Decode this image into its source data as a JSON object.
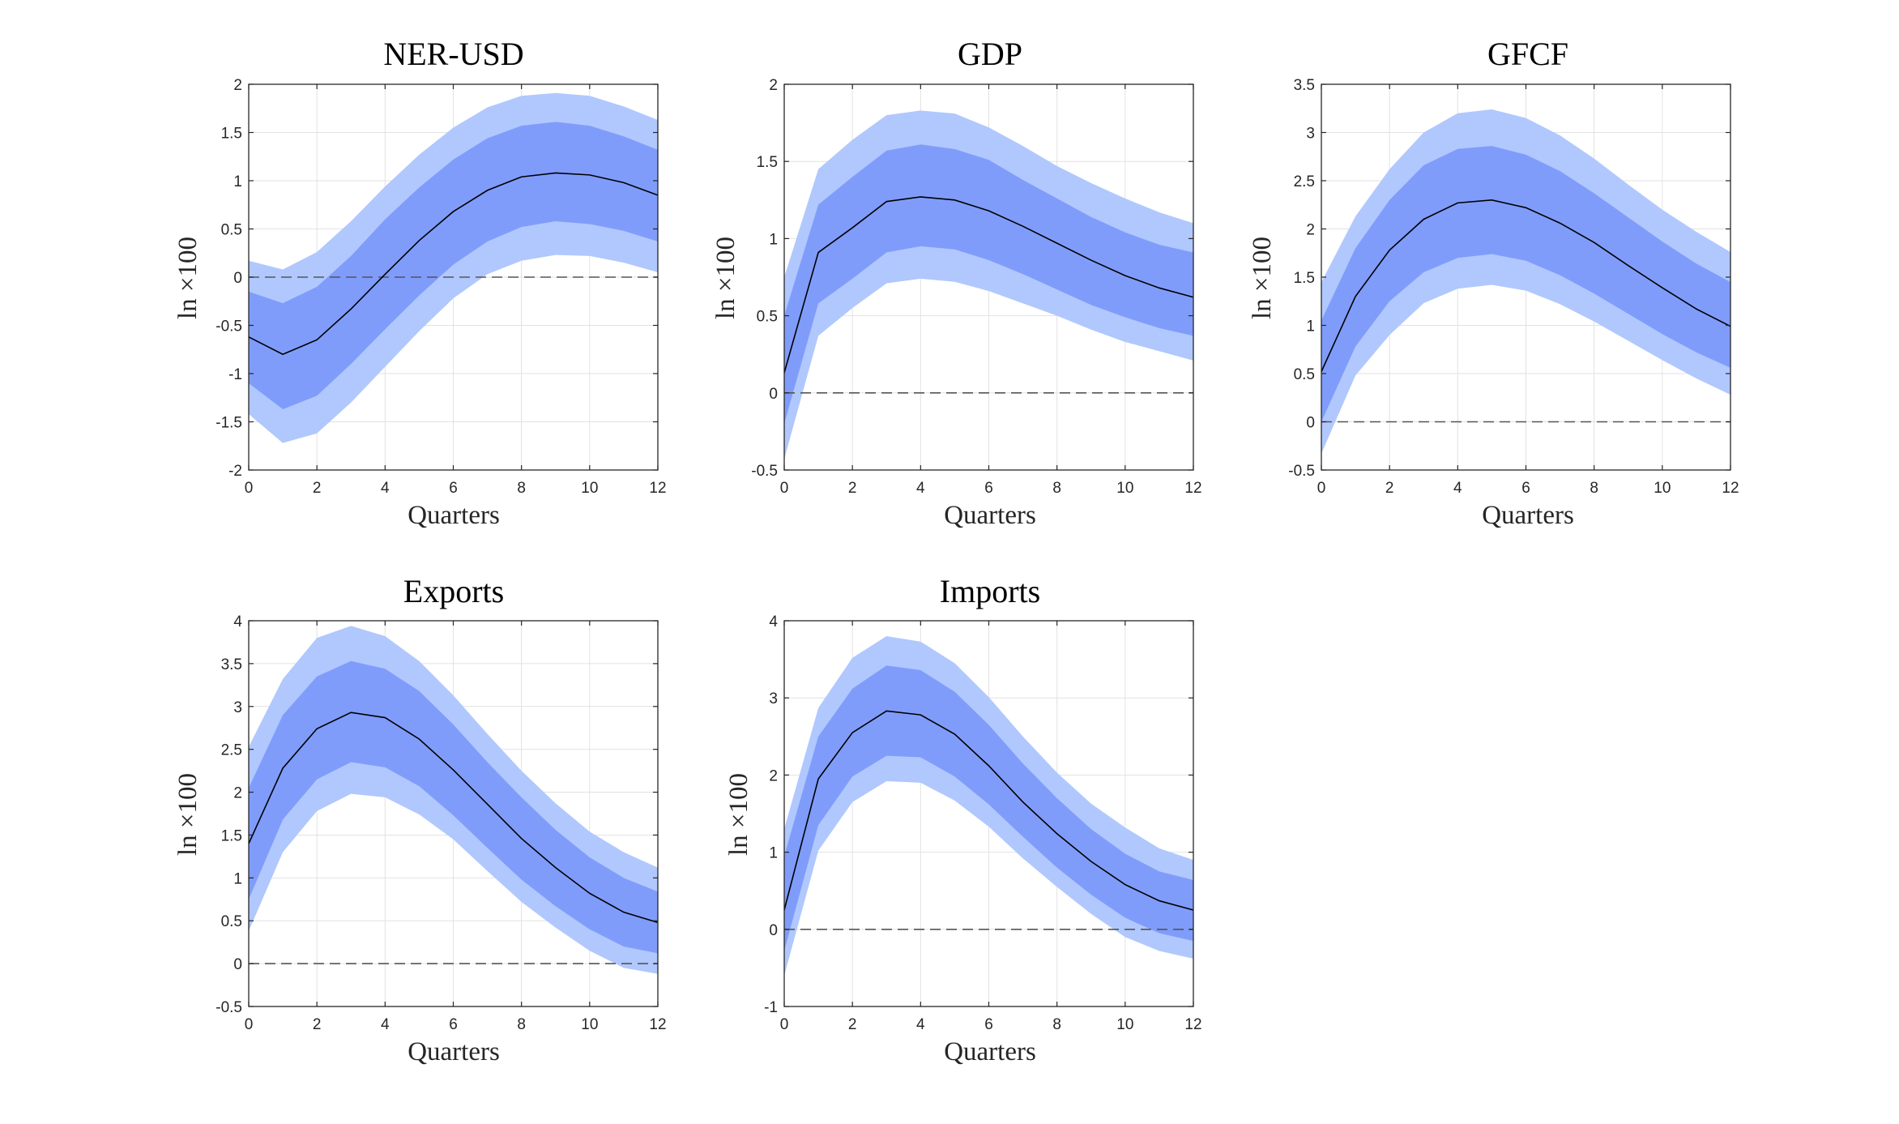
{
  "colors": {
    "outer_band": "#b0c8fd",
    "inner_band": "#809cfb",
    "median_line": "#000000",
    "zero_line": "#555555",
    "grid": "#e2e2e2",
    "axes": "#262626"
  },
  "chart_data": [
    {
      "type": "area",
      "title": "NER-USD",
      "xlabel": "Quarters",
      "ylabel": "ln ×100",
      "xlim": [
        0,
        12
      ],
      "ylim": [
        -2,
        2
      ],
      "xticks": [
        0,
        2,
        4,
        6,
        8,
        10,
        12
      ],
      "yticks": [
        -2,
        -1.5,
        -1,
        -0.5,
        0,
        0.5,
        1,
        1.5,
        2
      ],
      "grid": true,
      "x": [
        0,
        1,
        2,
        3,
        4,
        5,
        6,
        7,
        8,
        9,
        10,
        11,
        12
      ],
      "series": [
        {
          "name": "outer_upper",
          "values": [
            0.17,
            0.08,
            0.26,
            0.58,
            0.94,
            1.27,
            1.55,
            1.76,
            1.88,
            1.91,
            1.88,
            1.77,
            1.63
          ]
        },
        {
          "name": "inner_upper",
          "values": [
            -0.15,
            -0.27,
            -0.1,
            0.22,
            0.6,
            0.93,
            1.22,
            1.44,
            1.57,
            1.61,
            1.57,
            1.46,
            1.32
          ]
        },
        {
          "name": "median",
          "values": [
            -0.62,
            -0.8,
            -0.65,
            -0.33,
            0.03,
            0.38,
            0.68,
            0.9,
            1.04,
            1.08,
            1.06,
            0.98,
            0.85
          ]
        },
        {
          "name": "inner_lower",
          "values": [
            -1.1,
            -1.37,
            -1.23,
            -0.9,
            -0.54,
            -0.19,
            0.13,
            0.37,
            0.52,
            0.58,
            0.55,
            0.48,
            0.37
          ]
        },
        {
          "name": "outer_lower",
          "values": [
            -1.42,
            -1.72,
            -1.62,
            -1.3,
            -0.93,
            -0.56,
            -0.22,
            0.03,
            0.17,
            0.23,
            0.22,
            0.15,
            0.05
          ]
        }
      ]
    },
    {
      "type": "area",
      "title": "GDP",
      "xlabel": "Quarters",
      "ylabel": "ln ×100",
      "xlim": [
        0,
        12
      ],
      "ylim": [
        -0.5,
        2
      ],
      "xticks": [
        0,
        2,
        4,
        6,
        8,
        10,
        12
      ],
      "yticks": [
        -0.5,
        0,
        0.5,
        1,
        1.5,
        2
      ],
      "grid": true,
      "x": [
        0,
        1,
        2,
        3,
        4,
        5,
        6,
        7,
        8,
        9,
        10,
        11,
        12
      ],
      "series": [
        {
          "name": "outer_upper",
          "values": [
            0.75,
            1.45,
            1.64,
            1.8,
            1.83,
            1.81,
            1.72,
            1.6,
            1.47,
            1.36,
            1.26,
            1.17,
            1.1
          ]
        },
        {
          "name": "inner_upper",
          "values": [
            0.5,
            1.22,
            1.4,
            1.57,
            1.61,
            1.58,
            1.51,
            1.38,
            1.26,
            1.14,
            1.04,
            0.96,
            0.91
          ]
        },
        {
          "name": "median",
          "values": [
            0.13,
            0.91,
            1.07,
            1.24,
            1.27,
            1.25,
            1.18,
            1.08,
            0.97,
            0.86,
            0.76,
            0.68,
            0.62
          ]
        },
        {
          "name": "inner_lower",
          "values": [
            -0.2,
            0.58,
            0.74,
            0.91,
            0.95,
            0.93,
            0.86,
            0.77,
            0.67,
            0.57,
            0.49,
            0.42,
            0.37
          ]
        },
        {
          "name": "outer_lower",
          "values": [
            -0.43,
            0.37,
            0.55,
            0.71,
            0.74,
            0.72,
            0.66,
            0.58,
            0.5,
            0.41,
            0.33,
            0.27,
            0.21
          ]
        }
      ]
    },
    {
      "type": "area",
      "title": "GFCF",
      "xlabel": "Quarters",
      "ylabel": "ln ×100",
      "xlim": [
        0,
        12
      ],
      "ylim": [
        -0.5,
        3.5
      ],
      "xticks": [
        0,
        2,
        4,
        6,
        8,
        10,
        12
      ],
      "yticks": [
        -0.5,
        0,
        0.5,
        1,
        1.5,
        2,
        2.5,
        3,
        3.5
      ],
      "grid": true,
      "x": [
        0,
        1,
        2,
        3,
        4,
        5,
        6,
        7,
        8,
        9,
        10,
        11,
        12
      ],
      "series": [
        {
          "name": "outer_upper",
          "values": [
            1.45,
            2.13,
            2.62,
            3.0,
            3.2,
            3.24,
            3.15,
            2.97,
            2.73,
            2.46,
            2.2,
            1.97,
            1.76
          ]
        },
        {
          "name": "inner_upper",
          "values": [
            1.05,
            1.8,
            2.3,
            2.66,
            2.83,
            2.86,
            2.77,
            2.6,
            2.37,
            2.12,
            1.87,
            1.64,
            1.45
          ]
        },
        {
          "name": "median",
          "values": [
            0.52,
            1.3,
            1.78,
            2.1,
            2.27,
            2.3,
            2.22,
            2.06,
            1.86,
            1.62,
            1.39,
            1.17,
            0.99
          ]
        },
        {
          "name": "inner_lower",
          "values": [
            0.0,
            0.78,
            1.25,
            1.55,
            1.7,
            1.74,
            1.67,
            1.52,
            1.33,
            1.12,
            0.91,
            0.72,
            0.56
          ]
        },
        {
          "name": "outer_lower",
          "values": [
            -0.33,
            0.48,
            0.9,
            1.23,
            1.38,
            1.42,
            1.36,
            1.22,
            1.04,
            0.84,
            0.64,
            0.45,
            0.28
          ]
        }
      ]
    },
    {
      "type": "area",
      "title": "Exports",
      "xlabel": "Quarters",
      "ylabel": "ln ×100",
      "xlim": [
        0,
        12
      ],
      "ylim": [
        -0.5,
        4
      ],
      "xticks": [
        0,
        2,
        4,
        6,
        8,
        10,
        12
      ],
      "yticks": [
        -0.5,
        0,
        0.5,
        1,
        1.5,
        2,
        2.5,
        3,
        3.5,
        4
      ],
      "grid": true,
      "x": [
        0,
        1,
        2,
        3,
        4,
        5,
        6,
        7,
        8,
        9,
        10,
        11,
        12
      ],
      "series": [
        {
          "name": "outer_upper",
          "values": [
            2.53,
            3.32,
            3.8,
            3.94,
            3.82,
            3.53,
            3.13,
            2.68,
            2.25,
            1.87,
            1.54,
            1.3,
            1.12
          ]
        },
        {
          "name": "inner_upper",
          "values": [
            2.05,
            2.9,
            3.35,
            3.53,
            3.44,
            3.18,
            2.79,
            2.35,
            1.94,
            1.56,
            1.24,
            1.0,
            0.84
          ]
        },
        {
          "name": "median",
          "values": [
            1.4,
            2.28,
            2.74,
            2.93,
            2.87,
            2.62,
            2.26,
            1.86,
            1.46,
            1.12,
            0.82,
            0.6,
            0.48
          ]
        },
        {
          "name": "inner_lower",
          "values": [
            0.75,
            1.68,
            2.15,
            2.35,
            2.29,
            2.07,
            1.73,
            1.35,
            0.98,
            0.67,
            0.4,
            0.2,
            0.12
          ]
        },
        {
          "name": "outer_lower",
          "values": [
            0.38,
            1.3,
            1.78,
            1.98,
            1.94,
            1.74,
            1.45,
            1.08,
            0.72,
            0.42,
            0.15,
            -0.05,
            -0.12
          ]
        }
      ]
    },
    {
      "type": "area",
      "title": "Imports",
      "xlabel": "Quarters",
      "ylabel": "ln ×100",
      "xlim": [
        0,
        12
      ],
      "ylim": [
        -1,
        4
      ],
      "xticks": [
        0,
        2,
        4,
        6,
        8,
        10,
        12
      ],
      "yticks": [
        -1,
        0,
        1,
        2,
        3,
        4
      ],
      "grid": true,
      "x": [
        0,
        1,
        2,
        3,
        4,
        5,
        6,
        7,
        8,
        9,
        10,
        11,
        12
      ],
      "series": [
        {
          "name": "outer_upper",
          "values": [
            1.3,
            2.87,
            3.52,
            3.8,
            3.73,
            3.45,
            3.01,
            2.5,
            2.03,
            1.63,
            1.32,
            1.05,
            0.9
          ]
        },
        {
          "name": "inner_upper",
          "values": [
            0.95,
            2.5,
            3.12,
            3.42,
            3.36,
            3.08,
            2.65,
            2.15,
            1.7,
            1.3,
            0.98,
            0.75,
            0.64
          ]
        },
        {
          "name": "median",
          "values": [
            0.25,
            1.95,
            2.55,
            2.83,
            2.78,
            2.53,
            2.12,
            1.65,
            1.24,
            0.88,
            0.58,
            0.37,
            0.25
          ]
        },
        {
          "name": "inner_lower",
          "values": [
            -0.28,
            1.35,
            1.98,
            2.25,
            2.23,
            1.98,
            1.62,
            1.2,
            0.8,
            0.45,
            0.15,
            -0.05,
            -0.15
          ]
        },
        {
          "name": "outer_lower",
          "values": [
            -0.6,
            1.02,
            1.65,
            1.92,
            1.9,
            1.67,
            1.33,
            0.92,
            0.55,
            0.2,
            -0.1,
            -0.28,
            -0.38
          ]
        }
      ]
    }
  ]
}
